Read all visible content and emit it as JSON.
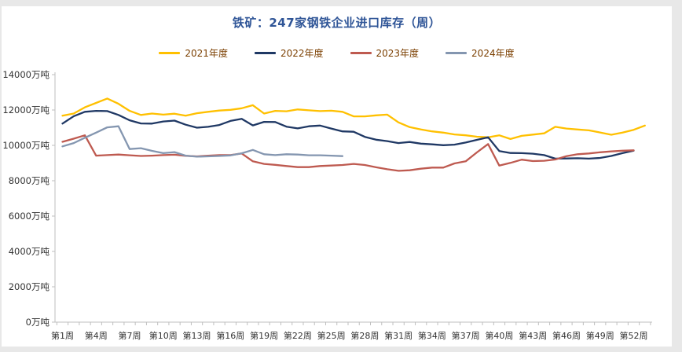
{
  "title": {
    "text": "铁矿：247家钢铁企业进口库存（周）"
  },
  "legend": {
    "position": "top-center"
  },
  "colors": {
    "frame": "#e8e8e8",
    "panel": "#ffffff",
    "title_text": "#2F5597",
    "legend_text": "#7B3F00",
    "axis_line": "#BFBFBF",
    "tick_text": "#333333"
  },
  "chart_data": {
    "type": "line",
    "title": "铁矿：247家钢铁企业进口库存（周）",
    "xlabel": "",
    "ylabel": "",
    "y_unit": "万吨",
    "ylim": [
      0,
      14000
    ],
    "grid": false,
    "legend_position": "top",
    "x_slots": 53,
    "y_ticks": [
      {
        "value": 0,
        "label": "0万吨"
      },
      {
        "value": 2000,
        "label": "2000万吨"
      },
      {
        "value": 4000,
        "label": "4000万吨"
      },
      {
        "value": 6000,
        "label": "6000万吨"
      },
      {
        "value": 8000,
        "label": "8000万吨"
      },
      {
        "value": 10000,
        "label": "10000万吨"
      },
      {
        "value": 12000,
        "label": "12000万吨"
      },
      {
        "value": 14000,
        "label": "14000万吨"
      }
    ],
    "x_ticks": [
      {
        "week": 1,
        "label": "第1周"
      },
      {
        "week": 4,
        "label": "第4周"
      },
      {
        "week": 7,
        "label": "第7周"
      },
      {
        "week": 10,
        "label": "第10周"
      },
      {
        "week": 13,
        "label": "第13周"
      },
      {
        "week": 16,
        "label": "第16周"
      },
      {
        "week": 19,
        "label": "第19周"
      },
      {
        "week": 22,
        "label": "第22周"
      },
      {
        "week": 25,
        "label": "第25周"
      },
      {
        "week": 28,
        "label": "第28周"
      },
      {
        "week": 31,
        "label": "第31周"
      },
      {
        "week": 34,
        "label": "第34周"
      },
      {
        "week": 37,
        "label": "第37周"
      },
      {
        "week": 40,
        "label": "第40周"
      },
      {
        "week": 43,
        "label": "第43周"
      },
      {
        "week": 46,
        "label": "第46周"
      },
      {
        "week": 49,
        "label": "第49周"
      },
      {
        "week": 52,
        "label": "第52周"
      }
    ],
    "series": [
      {
        "name": "2021年度",
        "color": "#FFC000",
        "start_week": 1,
        "values": [
          11680,
          11800,
          12150,
          12400,
          12650,
          12350,
          11950,
          11720,
          11800,
          11740,
          11790,
          11680,
          11820,
          11900,
          11970,
          12010,
          12100,
          12270,
          11800,
          11950,
          11930,
          12030,
          11980,
          11940,
          11960,
          11900,
          11640,
          11640,
          11700,
          11740,
          11300,
          11030,
          10900,
          10790,
          10720,
          10620,
          10570,
          10490,
          10460,
          10570,
          10360,
          10540,
          10610,
          10680,
          11050,
          10950,
          10900,
          10850,
          10730,
          10600,
          10720,
          10880,
          11120
        ]
      },
      {
        "name": "2022年度",
        "color": "#1F3864",
        "start_week": 1,
        "values": [
          11230,
          11650,
          11900,
          11950,
          11940,
          11720,
          11420,
          11240,
          11230,
          11350,
          11400,
          11170,
          11000,
          11050,
          11150,
          11380,
          11500,
          11130,
          11330,
          11320,
          11060,
          10960,
          11080,
          11120,
          10950,
          10790,
          10770,
          10480,
          10320,
          10240,
          10130,
          10190,
          10100,
          10060,
          10010,
          10040,
          10160,
          10310,
          10460,
          9680,
          9570,
          9560,
          9530,
          9450,
          9250,
          9260,
          9270,
          9250,
          9290,
          9400,
          9560,
          9700
        ]
      },
      {
        "name": "2023年度",
        "color": "#BE5A50",
        "start_week": 1,
        "values": [
          10200,
          10380,
          10570,
          9420,
          9450,
          9480,
          9440,
          9400,
          9420,
          9450,
          9470,
          9410,
          9380,
          9420,
          9450,
          9450,
          9540,
          9100,
          8950,
          8900,
          8830,
          8770,
          8770,
          8830,
          8860,
          8890,
          8950,
          8890,
          8760,
          8650,
          8560,
          8590,
          8680,
          8740,
          8740,
          8980,
          9100,
          9600,
          10075,
          8860,
          9010,
          9190,
          9110,
          9130,
          9200,
          9390,
          9500,
          9540,
          9610,
          9660,
          9700,
          9720
        ]
      },
      {
        "name": "2024年度",
        "color": "#8496B0",
        "start_week": 1,
        "values": [
          9940,
          10130,
          10430,
          10720,
          11020,
          11080,
          9790,
          9840,
          9690,
          9560,
          9620,
          9420,
          9360,
          9380,
          9400,
          9430,
          9550,
          9740,
          9500,
          9450,
          9500,
          9480,
          9440,
          9440,
          9420,
          9390
        ]
      }
    ]
  }
}
